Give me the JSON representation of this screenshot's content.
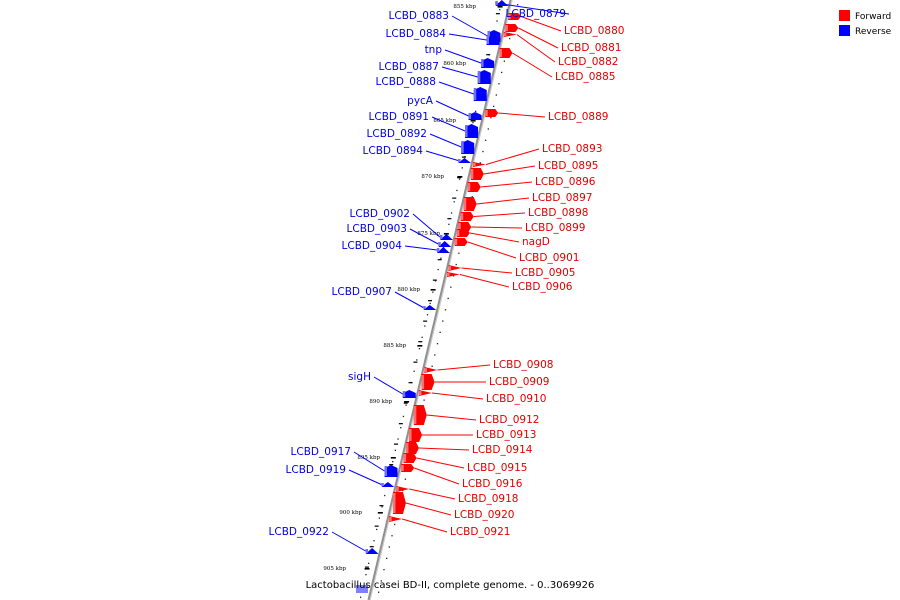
{
  "legend": [
    {
      "label": "Forward",
      "color": "#ff0000"
    },
    {
      "label": "Reverse",
      "color": "#0000ff"
    }
  ],
  "caption": "Lactobacillus casei BD-II, complete genome. - 0..3069926",
  "ruler_ticks": [
    "855 kbp",
    "860 kbp",
    "865 kbp",
    "870 kbp",
    "875 kbp",
    "880 kbp",
    "885 kbp",
    "890 kbp",
    "895 kbp",
    "900 kbp",
    "905 kbp"
  ],
  "genes_forward": [
    "LCBD_0880",
    "LCBD_0881",
    "LCBD_0882",
    "LCBD_0885",
    "LCBD_0889",
    "LCBD_0893",
    "LCBD_0895",
    "LCBD_0896",
    "LCBD_0897",
    "LCBD_0898",
    "LCBD_0899",
    "nagD",
    "LCBD_0901",
    "LCBD_0905",
    "LCBD_0906",
    "LCBD_0908",
    "LCBD_0909",
    "LCBD_0910",
    "LCBD_0912",
    "LCBD_0913",
    "LCBD_0914",
    "LCBD_0915",
    "LCBD_0916",
    "LCBD_0918",
    "LCBD_0920",
    "LCBD_0921"
  ],
  "genes_reverse": [
    "LCBD_0879",
    "LCBD_0883",
    "LCBD_0884",
    "tnp",
    "LCBD_0887",
    "LCBD_0888",
    "pycA",
    "LCBD_0891",
    "LCBD_0892",
    "LCBD_0894",
    "LCBD_0902",
    "LCBD_0903",
    "LCBD_0904",
    "LCBD_0907",
    "sigH",
    "LCBD_0917",
    "LCBD_0919",
    "LCBD_0922"
  ]
}
